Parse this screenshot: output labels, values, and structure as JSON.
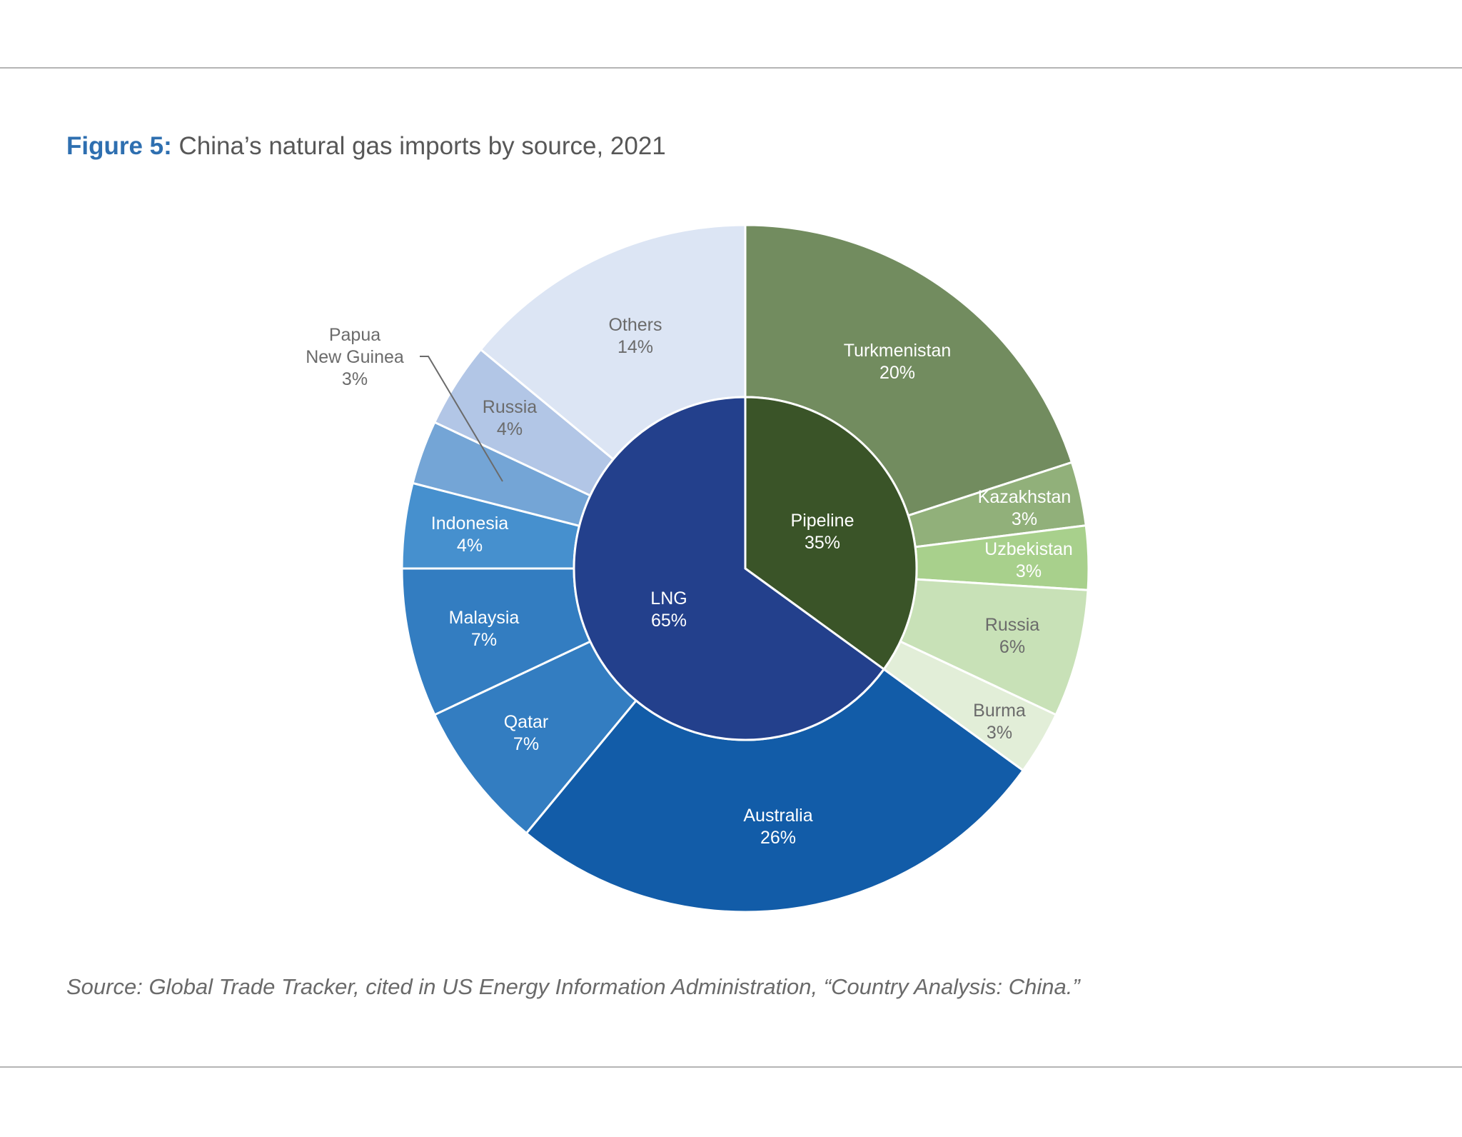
{
  "figure": {
    "label": "Figure 5:",
    "title": "China’s natural gas imports by source, 2021"
  },
  "source": "Source: Global Trade Tracker, cited in US Energy Information Administration, “Country Analysis: China.”",
  "chart_data": {
    "type": "pie",
    "subtype": "nested-donut (sunburst)",
    "title": "China’s natural gas imports by source, 2021",
    "unit": "% of total imports",
    "inner_ring": [
      {
        "label": "Pipeline",
        "value": 35,
        "color": "#3a5428"
      },
      {
        "label": "LNG",
        "value": 65,
        "color": "#23408c"
      }
    ],
    "outer_ring": [
      {
        "label": "Turkmenistan",
        "value": 20,
        "parent": "Pipeline",
        "color": "#728c5f"
      },
      {
        "label": "Kazakhstan",
        "value": 3,
        "parent": "Pipeline",
        "color": "#91b07a"
      },
      {
        "label": "Uzbekistan",
        "value": 3,
        "parent": "Pipeline",
        "color": "#a8d08c"
      },
      {
        "label": "Russia",
        "value": 6,
        "parent": "Pipeline",
        "color": "#c8e1b7"
      },
      {
        "label": "Burma",
        "value": 3,
        "parent": "Pipeline",
        "color": "#e2eed8"
      },
      {
        "label": "Australia",
        "value": 26,
        "parent": "LNG",
        "color": "#125ca8"
      },
      {
        "label": "Qatar",
        "value": 7,
        "parent": "LNG",
        "color": "#337dc1"
      },
      {
        "label": "Malaysia",
        "value": 7,
        "parent": "LNG",
        "color": "#337dc1"
      },
      {
        "label": "Indonesia",
        "value": 4,
        "parent": "LNG",
        "color": "#4690ce"
      },
      {
        "label": "Papua New Guinea",
        "value": 3,
        "parent": "LNG",
        "color": "#74a5d6"
      },
      {
        "label": "Russia",
        "value": 4,
        "parent": "LNG",
        "color": "#b2c6e6"
      },
      {
        "label": "Others",
        "value": 14,
        "parent": "LNG",
        "color": "#dce5f4"
      }
    ],
    "legend": "none (direct labels)",
    "callouts": [
      {
        "label": "Papua New Guinea 3%",
        "leader_line": true
      }
    ]
  },
  "labels": {
    "pipeline": {
      "name": "Pipeline",
      "pct": "35%"
    },
    "lng": {
      "name": "LNG",
      "pct": "65%"
    },
    "turkmenistan": {
      "name": "Turkmenistan",
      "pct": "20%"
    },
    "kazakhstan": {
      "name": "Kazakhstan",
      "pct": "3%"
    },
    "uzbekistan": {
      "name": "Uzbekistan",
      "pct": "3%"
    },
    "russia_pipe": {
      "name": "Russia",
      "pct": "6%"
    },
    "burma": {
      "name": "Burma",
      "pct": "3%"
    },
    "australia": {
      "name": "Australia",
      "pct": "26%"
    },
    "qatar": {
      "name": "Qatar",
      "pct": "7%"
    },
    "malaysia": {
      "name": "Malaysia",
      "pct": "7%"
    },
    "indonesia": {
      "name": "Indonesia",
      "pct": "4%"
    },
    "png": {
      "name1": "Papua",
      "name2": "New Guinea",
      "pct": "3%"
    },
    "russia_lng": {
      "name": "Russia",
      "pct": "4%"
    },
    "others": {
      "name": "Others",
      "pct": "14%"
    }
  }
}
